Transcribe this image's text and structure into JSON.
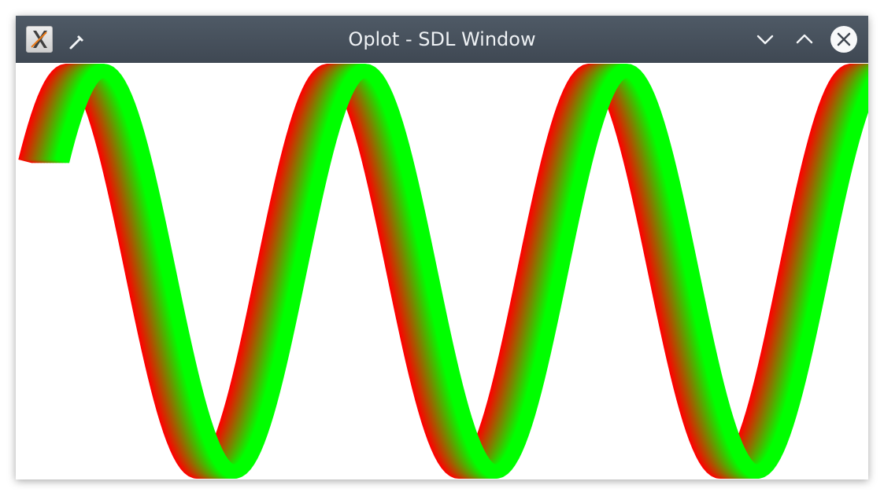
{
  "window": {
    "title": "Oplot - SDL Window",
    "buttons": {
      "app_icon": "x-app-icon",
      "pin": "pin-icon",
      "minimize": "chevron-down-icon",
      "maximize": "chevron-up-icon",
      "close": "close-icon"
    }
  },
  "plot": {
    "type": "gradient-ribbon-sine",
    "cycles": 3.2,
    "colors": {
      "start": "#ff0000",
      "end": "#00ff00",
      "background": "#ffffff"
    }
  }
}
